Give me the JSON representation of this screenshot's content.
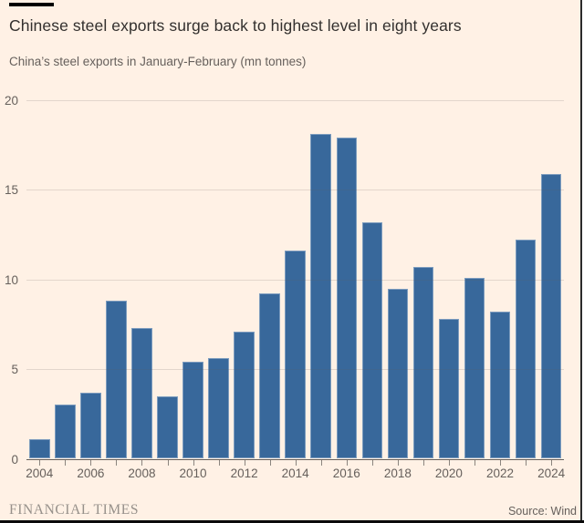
{
  "header": {
    "title": "Chinese steel exports surge back to highest level in eight years",
    "subtitle": "China’s steel exports in January-February (mn tonnes)"
  },
  "footer": {
    "brand": "FINANCIAL TIMES",
    "source": "Source: Wind"
  },
  "colors": {
    "background": "#FFF1E5",
    "bar": "#38689B",
    "accent_bar": "#000000",
    "title_text": "#33302E",
    "muted_text": "#66605C",
    "brand_text": "#96908A"
  },
  "chart_data": {
    "type": "bar",
    "title": "Chinese steel exports surge back to highest level in eight years",
    "subtitle": "China’s steel exports in January-February (mn tonnes)",
    "xlabel": "",
    "ylabel": "mn tonnes",
    "categories": [
      "2004",
      "2005",
      "2006",
      "2007",
      "2008",
      "2009",
      "2010",
      "2011",
      "2012",
      "2013",
      "2014",
      "2015",
      "2016",
      "2017",
      "2018",
      "2019",
      "2020",
      "2021",
      "2022",
      "2023",
      "2024"
    ],
    "values": [
      1.1,
      3.0,
      3.7,
      8.8,
      7.3,
      3.5,
      5.4,
      5.6,
      7.1,
      9.2,
      11.6,
      18.1,
      17.9,
      13.2,
      9.5,
      10.7,
      7.8,
      10.1,
      8.2,
      12.2,
      15.9
    ],
    "ylim": [
      0,
      20
    ],
    "yticks": [
      0,
      5,
      10,
      15,
      20
    ],
    "xtick_labels": [
      "2004",
      "2006",
      "2008",
      "2010",
      "2012",
      "2014",
      "2016",
      "2018",
      "2020",
      "2022",
      "2024"
    ],
    "grid": true,
    "legend_position": "none",
    "source": "Source: Wind"
  }
}
